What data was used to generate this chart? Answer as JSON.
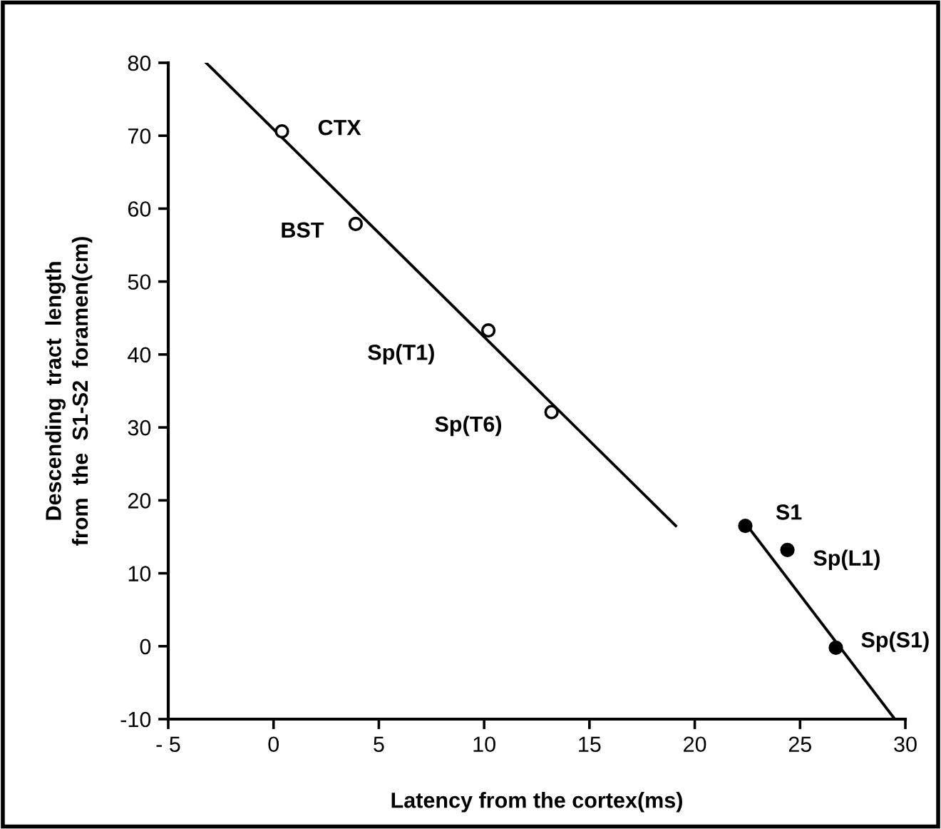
{
  "chart_data": {
    "type": "scatter",
    "xlabel": "Latency from the cortex(ms)",
    "ylabel": "Descending  tract  length\nfrom  the  S1-S2  foramen(cm)",
    "xlim": [
      -5,
      30
    ],
    "xticks": [
      {
        "value": -5,
        "label": "- 5"
      },
      0,
      5,
      10,
      15,
      20,
      25,
      30
    ],
    "ylim": [
      -10,
      80
    ],
    "yticks": [
      -10,
      0,
      10,
      20,
      30,
      40,
      50,
      60,
      70,
      80
    ],
    "grid": false,
    "legend": false,
    "series": [
      {
        "marker": "circle",
        "color": "#ffffff",
        "x": [
          0.4,
          3.9,
          10.2,
          13.2
        ],
        "values": [
          70.6,
          57.9,
          43.3,
          32.1
        ]
      },
      {
        "marker": "circle",
        "color": "#000000",
        "x": [
          22.4,
          24.4,
          26.7
        ],
        "values": [
          16.5,
          13.2,
          -0.2
        ]
      },
      {
        "type": "line",
        "marker": "none",
        "color": "#000000",
        "x": [
          -3.2,
          19.1
        ],
        "values": [
          80,
          16.5
        ]
      },
      {
        "type": "line",
        "marker": "none",
        "color": "#000000",
        "x": [
          22.5,
          29.5
        ],
        "values": [
          16.5,
          -10
        ]
      }
    ],
    "annotations": [
      {
        "text": "CTX",
        "x": 0.4,
        "y": 70.6
      },
      {
        "text": "BST",
        "x": 3.9,
        "y": 57.9
      },
      {
        "text": "Sp(T1)",
        "x": 10.2,
        "y": 43.3
      },
      {
        "text": "Sp(T6)",
        "x": 13.2,
        "y": 32.1
      },
      {
        "text": "S1",
        "x": 22.4,
        "y": 16.5
      },
      {
        "text": "Sp(L1)",
        "x": 24.4,
        "y": 13.2
      },
      {
        "text": "Sp(S1)",
        "x": 26.7,
        "y": -0.2
      }
    ]
  }
}
